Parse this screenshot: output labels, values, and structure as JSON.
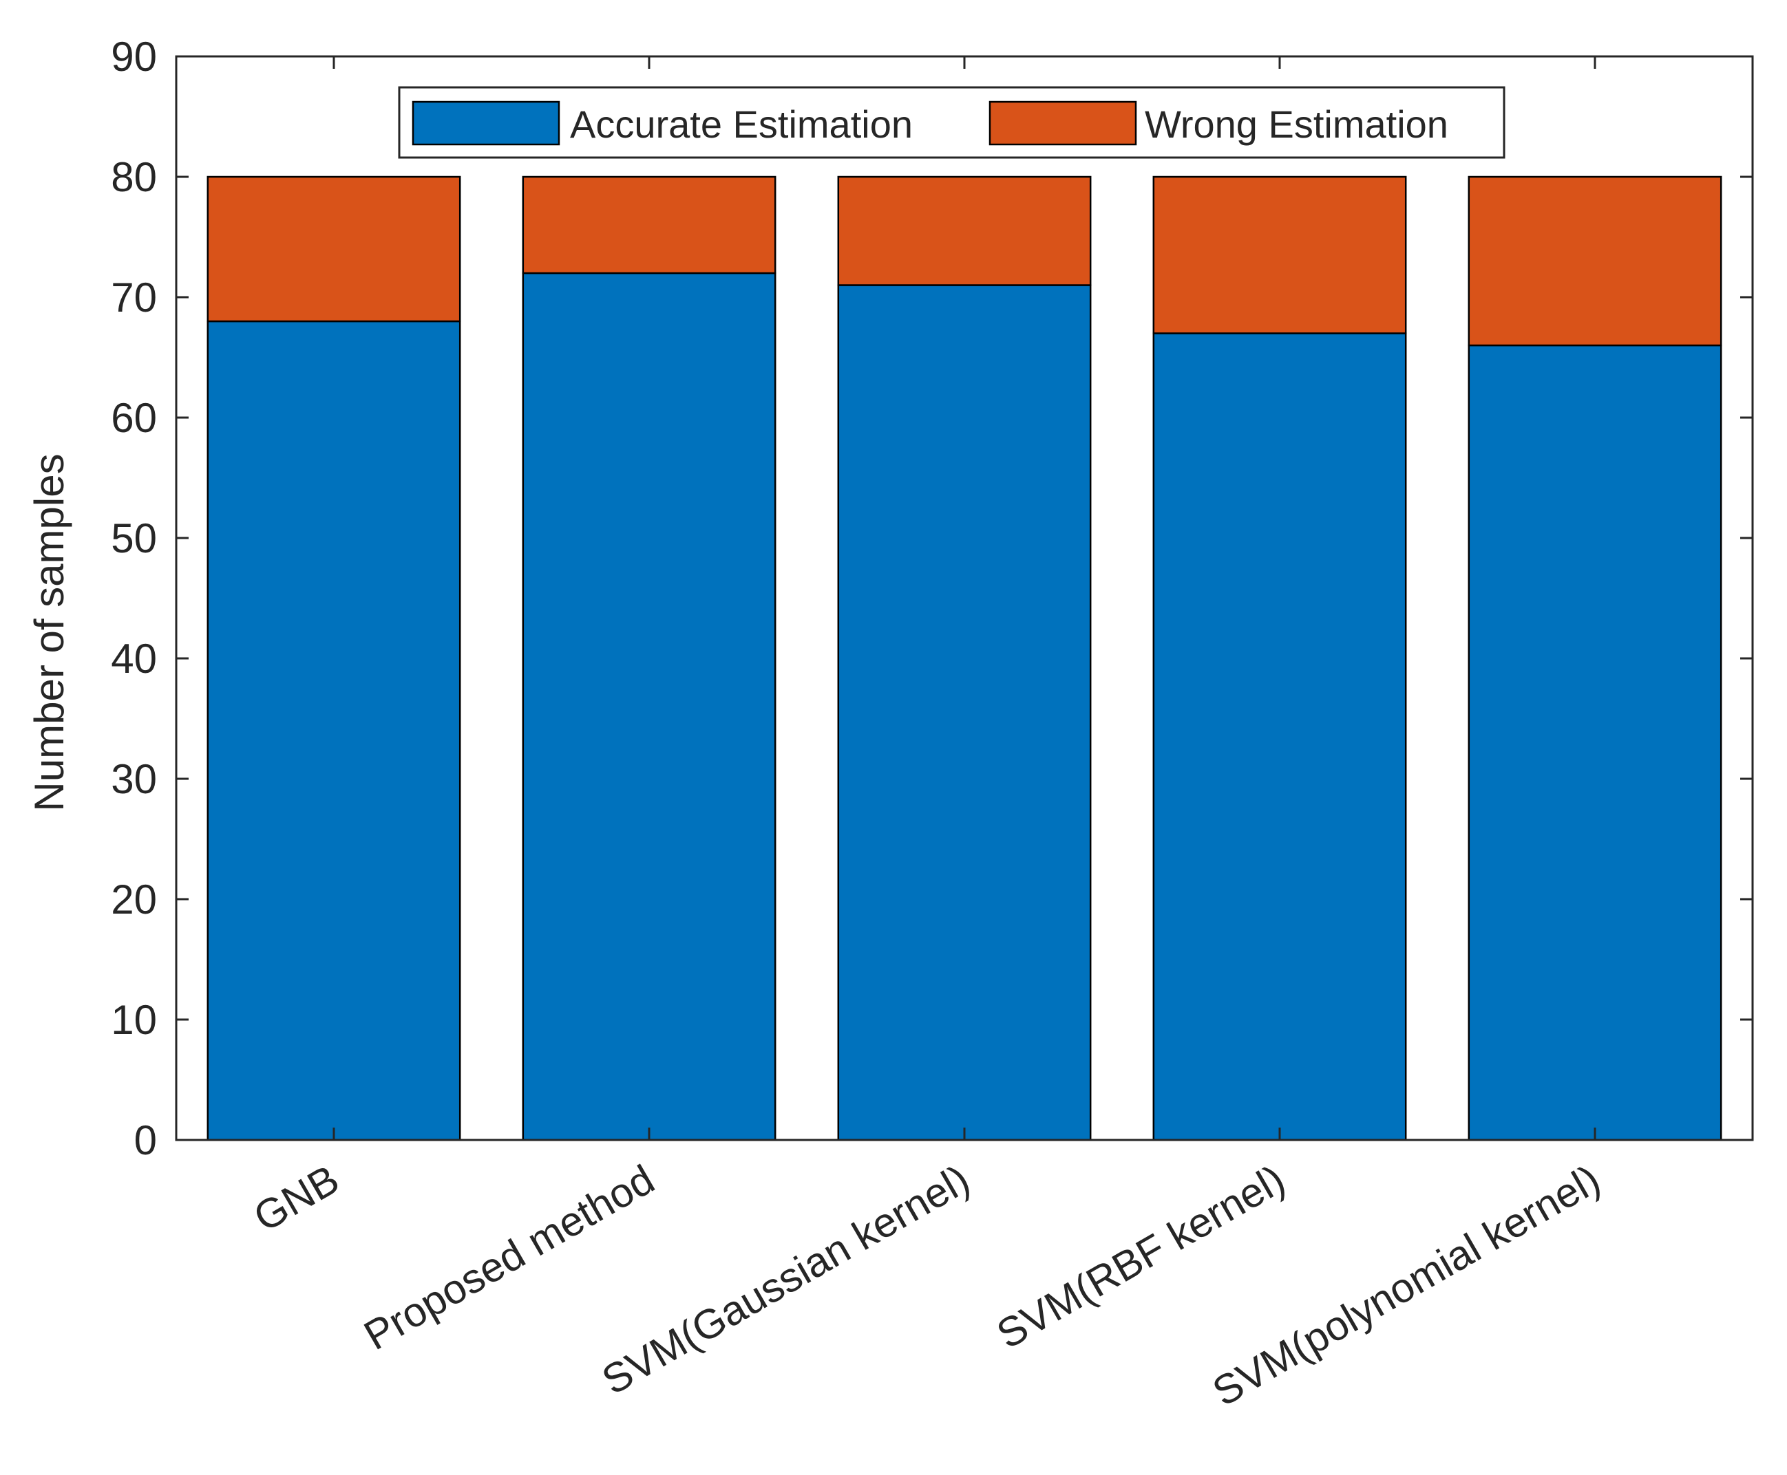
{
  "chart_data": {
    "type": "bar",
    "stacked": true,
    "categories": [
      "GNB",
      "Proposed method",
      "SVM(Gaussian kernel)",
      "SVM(RBF kernel)",
      "SVM(polynomial kernel)"
    ],
    "series": [
      {
        "name": "Accurate Estimation",
        "values": [
          68,
          72,
          71,
          67,
          66
        ],
        "color": "#0072BD"
      },
      {
        "name": "Wrong Estimation",
        "values": [
          12,
          8,
          9,
          13,
          14
        ],
        "color": "#D95319"
      }
    ],
    "ylabel": "Number of samples",
    "xlabel": "",
    "title": "",
    "ylim": [
      0,
      90
    ],
    "yticks": [
      0,
      10,
      20,
      30,
      40,
      50,
      60,
      70,
      80,
      90
    ],
    "grid": false,
    "legend_position": "top-center, horizontal"
  }
}
